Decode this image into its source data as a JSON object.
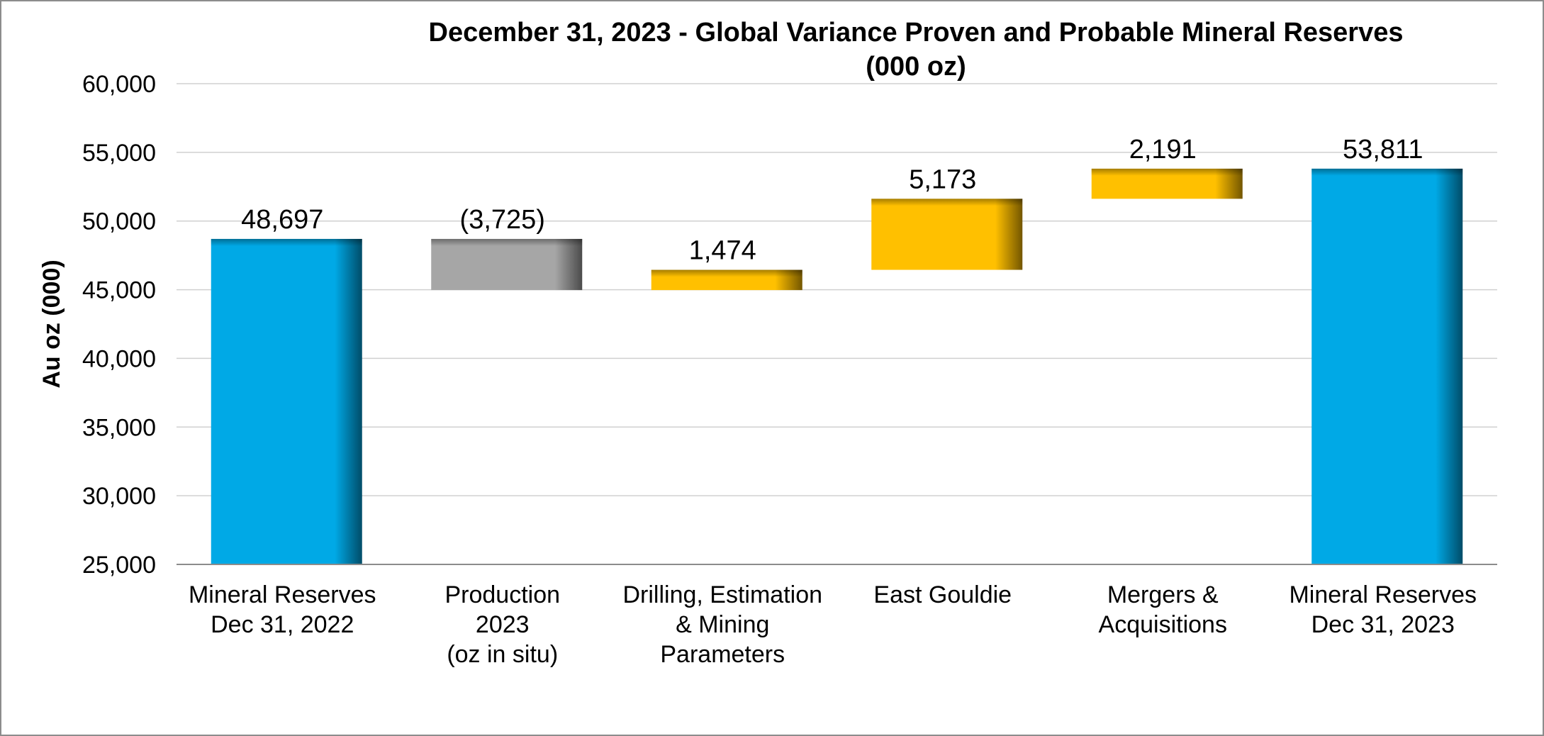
{
  "chart_data": {
    "type": "waterfall",
    "title": "December 31, 2023 - Global Variance Proven and Probable Mineral Reserves",
    "subtitle": "(000 oz)",
    "ylabel": "Au oz (000)",
    "xlabel": "",
    "ylim": [
      25000,
      60000
    ],
    "ytick_step": 5000,
    "ytick_labels": [
      "25,000",
      "30,000",
      "35,000",
      "40,000",
      "45,000",
      "50,000",
      "55,000",
      "60,000"
    ],
    "grid": true,
    "legend": "none",
    "categories": [
      [
        "Mineral Reserves",
        "Dec 31, 2022"
      ],
      [
        "Production",
        "2023",
        "(oz in situ)"
      ],
      [
        "Drilling, Estimation",
        "& Mining",
        "Parameters"
      ],
      [
        "East Gouldie"
      ],
      [
        "Mergers &",
        "Acquisitions"
      ],
      [
        "Mineral Reserves",
        "Dec 31, 2023"
      ]
    ],
    "bars": [
      {
        "kind": "total",
        "start": 25000,
        "end": 48697,
        "value": 48697,
        "label": "48,697",
        "color": "#00A9E6"
      },
      {
        "kind": "decrease",
        "start": 48697,
        "end": 44972,
        "value": -3725,
        "label": "(3,725)",
        "color": "#A6A6A6"
      },
      {
        "kind": "increase",
        "start": 44972,
        "end": 46446,
        "value": 1474,
        "label": "1,474",
        "color": "#FFC000"
      },
      {
        "kind": "increase",
        "start": 46446,
        "end": 51619,
        "value": 5173,
        "label": "5,173",
        "color": "#FFC000"
      },
      {
        "kind": "increase",
        "start": 51619,
        "end": 53811,
        "value": 2191,
        "label": "2,191",
        "color": "#FFC000"
      },
      {
        "kind": "total",
        "start": 25000,
        "end": 53811,
        "value": 53811,
        "label": "53,811",
        "color": "#00A9E6"
      }
    ]
  }
}
